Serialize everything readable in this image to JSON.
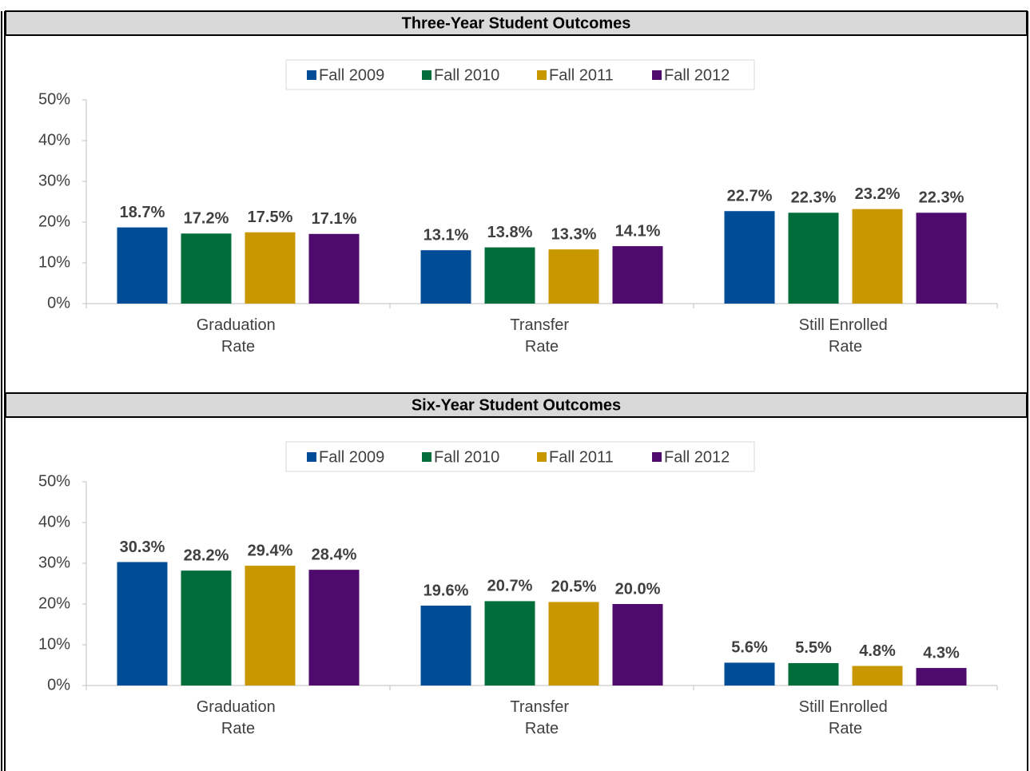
{
  "chart_data": [
    {
      "type": "bar",
      "title": "Three-Year Student Outcomes",
      "categories": [
        "Graduation Rate",
        "Transfer Rate",
        "Still Enrolled Rate"
      ],
      "series": [
        {
          "name": "Fall 2009",
          "color": "#004c97",
          "values": [
            18.7,
            13.1,
            22.7
          ],
          "value_labels": [
            "18.7%",
            "13.1%",
            "22.7%"
          ]
        },
        {
          "name": "Fall 2010",
          "color": "#006d3a",
          "values": [
            17.2,
            13.8,
            22.3
          ],
          "value_labels": [
            "17.2%",
            "13.8%",
            "22.3%"
          ]
        },
        {
          "name": "Fall 2011",
          "color": "#c99700",
          "values": [
            17.5,
            13.3,
            23.2
          ],
          "value_labels": [
            "17.5%",
            "13.3%",
            "23.2%"
          ]
        },
        {
          "name": "Fall 2012",
          "color": "#4f0a6e",
          "values": [
            17.1,
            14.1,
            22.3
          ],
          "value_labels": [
            "17.1%",
            "14.1%",
            "22.3%"
          ]
        }
      ],
      "ylim": [
        0,
        50
      ],
      "yticks": [
        {
          "value": 0,
          "label": "0%"
        },
        {
          "value": 10,
          "label": "10%"
        },
        {
          "value": 20,
          "label": "20%"
        },
        {
          "value": 30,
          "label": "30%"
        },
        {
          "value": 40,
          "label": "40%"
        },
        {
          "value": 50,
          "label": "50%"
        }
      ],
      "legend": "top",
      "grid": false
    },
    {
      "type": "bar",
      "title": "Six-Year Student Outcomes",
      "categories": [
        "Graduation Rate",
        "Transfer Rate",
        "Still Enrolled Rate"
      ],
      "series": [
        {
          "name": "Fall 2009",
          "color": "#004c97",
          "values": [
            30.3,
            19.6,
            5.6
          ],
          "value_labels": [
            "30.3%",
            "19.6%",
            "5.6%"
          ]
        },
        {
          "name": "Fall 2010",
          "color": "#006d3a",
          "values": [
            28.2,
            20.7,
            5.5
          ],
          "value_labels": [
            "28.2%",
            "20.7%",
            "5.5%"
          ]
        },
        {
          "name": "Fall 2011",
          "color": "#c99700",
          "values": [
            29.4,
            20.5,
            4.8
          ],
          "value_labels": [
            "29.4%",
            "20.5%",
            "4.8%"
          ]
        },
        {
          "name": "Fall 2012",
          "color": "#4f0a6e",
          "values": [
            28.4,
            20.0,
            4.3
          ],
          "value_labels": [
            "28.4%",
            "20.0%",
            "4.3%"
          ]
        }
      ],
      "ylim": [
        0,
        50
      ],
      "yticks": [
        {
          "value": 0,
          "label": "0%"
        },
        {
          "value": 10,
          "label": "10%"
        },
        {
          "value": 20,
          "label": "20%"
        },
        {
          "value": 30,
          "label": "30%"
        },
        {
          "value": 40,
          "label": "40%"
        },
        {
          "value": 50,
          "label": "50%"
        }
      ],
      "legend": "top",
      "grid": false
    }
  ]
}
